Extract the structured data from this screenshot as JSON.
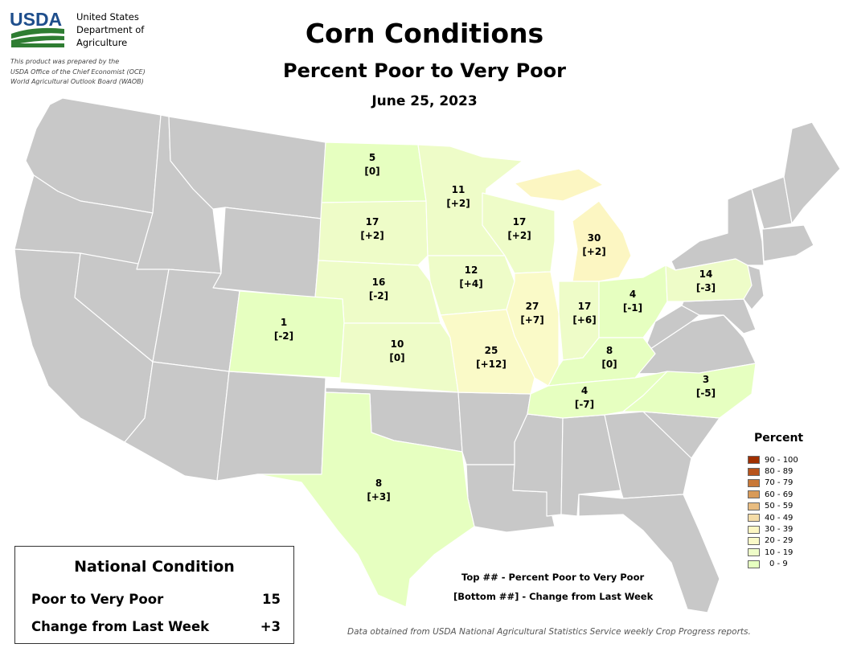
{
  "header": {
    "org_short": "USDA",
    "org_line1": "United States",
    "org_line2": "Department of",
    "org_line3": "Agriculture",
    "prepared_line1": "This product was prepared by the",
    "prepared_line2": "USDA Office of the Chief Economist (OCE)",
    "prepared_line3": "World Agricultural Outlook Board (WAOB)",
    "title": "Corn Conditions",
    "subtitle": "Percent Poor to Very Poor",
    "date": "June 25, 2023"
  },
  "colors": {
    "non_reporting": "#c8c8c8",
    "border": "#ffffff",
    "band_0_9": "#e6ffc0",
    "band_10_19": "#eefcc8",
    "band_20_29": "#fafac8",
    "band_30_39": "#fcf6c2"
  },
  "chart_data": {
    "type": "choropleth",
    "title": "Corn Conditions",
    "subtitle": "Percent Poor to Very Poor",
    "date": "June 25, 2023",
    "states": [
      {
        "state": "ND",
        "value": 5,
        "change": "[0]"
      },
      {
        "state": "SD",
        "value": 17,
        "change": "[+2]"
      },
      {
        "state": "NE",
        "value": 16,
        "change": "[-2]"
      },
      {
        "state": "KS",
        "value": 10,
        "change": "[0]"
      },
      {
        "state": "CO",
        "value": 1,
        "change": "[-2]"
      },
      {
        "state": "TX",
        "value": 8,
        "change": "[+3]"
      },
      {
        "state": "MN",
        "value": 11,
        "change": "[+2]"
      },
      {
        "state": "IA",
        "value": 12,
        "change": "[+4]"
      },
      {
        "state": "MO",
        "value": 25,
        "change": "[+12]"
      },
      {
        "state": "WI",
        "value": 17,
        "change": "[+2]"
      },
      {
        "state": "IL",
        "value": 27,
        "change": "[+7]"
      },
      {
        "state": "MI",
        "value": 30,
        "change": "[+2]"
      },
      {
        "state": "IN",
        "value": 17,
        "change": "[+6]"
      },
      {
        "state": "OH",
        "value": 4,
        "change": "[-1]"
      },
      {
        "state": "KY",
        "value": 8,
        "change": "[0]"
      },
      {
        "state": "TN",
        "value": 4,
        "change": "[-7]"
      },
      {
        "state": "NC",
        "value": 3,
        "change": "[-5]"
      },
      {
        "state": "PA",
        "value": 14,
        "change": "[-3]"
      }
    ],
    "legend": {
      "title": "Percent",
      "bins": [
        {
          "label": "90 - 100",
          "color": "#a03000"
        },
        {
          "label": "80 - 89",
          "color": "#b8541c"
        },
        {
          "label": "70 - 79",
          "color": "#c87838"
        },
        {
          "label": "60 - 69",
          "color": "#d89a58"
        },
        {
          "label": "50 - 59",
          "color": "#e8bc80"
        },
        {
          "label": "40 - 49",
          "color": "#f4dca8"
        },
        {
          "label": "30 - 39",
          "color": "#fcf6c2"
        },
        {
          "label": "20 - 29",
          "color": "#fafac8"
        },
        {
          "label": "10 - 19",
          "color": "#eefcc8"
        },
        {
          "label": "0 - 9",
          "color": "#e6ffc0"
        }
      ]
    }
  },
  "national": {
    "title": "National Condition",
    "row1_label": "Poor to Very Poor",
    "row1_value": "15",
    "row2_label": "Change from Last Week",
    "row2_value": "+3"
  },
  "notes": {
    "line1": "Top ## - Percent Poor to Very Poor",
    "line2": "[Bottom ##] - Change from Last Week"
  },
  "source": "Data obtained from USDA National Agricultural Statistics Service weekly Crop Progress reports."
}
